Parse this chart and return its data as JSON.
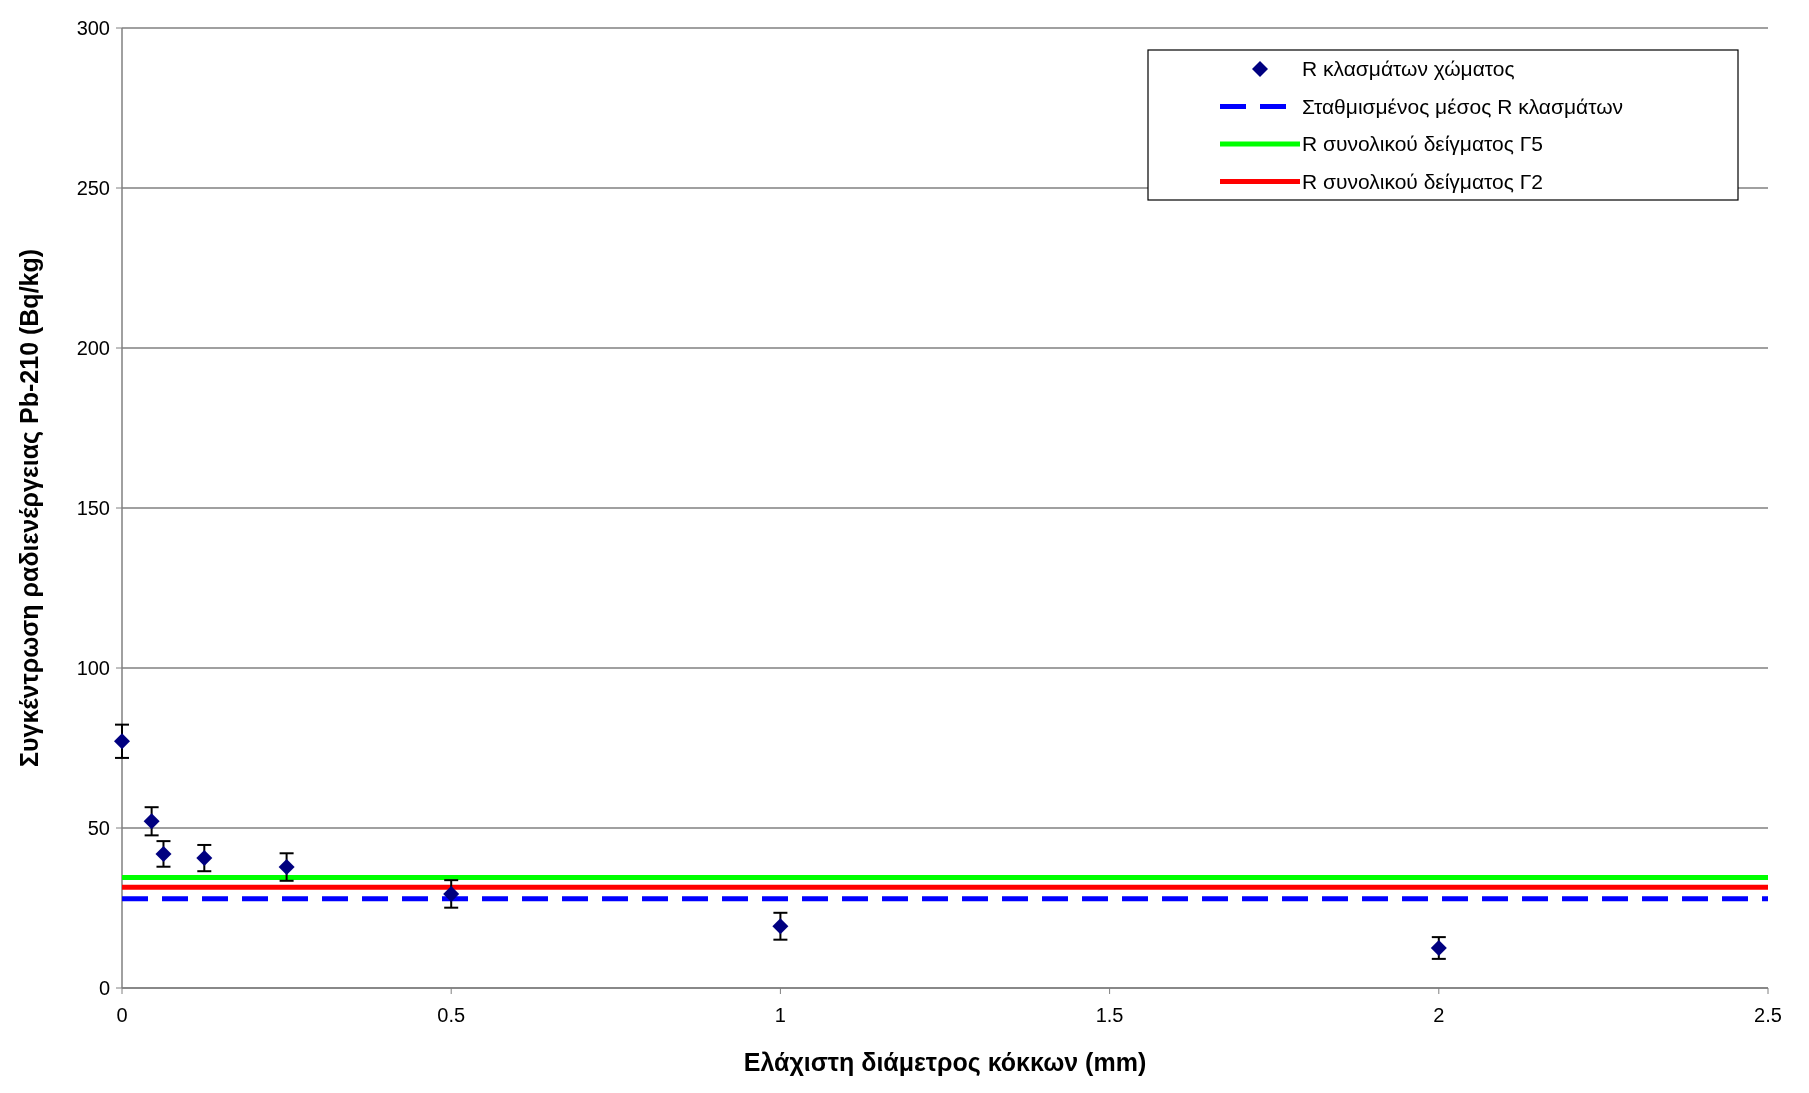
{
  "chart_data": {
    "type": "scatter",
    "xlabel": "Ελάχιστη διάμετρος κόκκων (mm)",
    "ylabel": "Συγκέντρωση ραδιενέργειας Pb-210 (Bq/kg)",
    "x": [
      0,
      0.045,
      0.063,
      0.125,
      0.25,
      0.5,
      1,
      2
    ],
    "series": [
      {
        "name": "R κλασμάτων χώματος",
        "color": "#000080",
        "values": [
          77.1,
          52.1,
          41.9,
          40.6,
          37.8,
          29.4,
          19.3,
          12.5
        ],
        "errors": [
          5.2,
          4.4,
          4,
          4.1,
          4.3,
          4.3,
          4.2,
          3.4
        ],
        "marker": "diamond"
      }
    ],
    "ref_lines": [
      {
        "axis": "y",
        "value": 27.9,
        "label": "Σταθμισμένος μέσος R κλασμάτων",
        "color": "#0000ff",
        "line_style": "dashed"
      },
      {
        "axis": "y",
        "value": 34.5,
        "label": "R συνολικού δείγματος Γ5",
        "color": "#00ff00",
        "line_style": "solid"
      },
      {
        "axis": "y",
        "value": 31.5,
        "label": "R συνολικού δείγματος Γ2",
        "color": "#ff0000",
        "line_style": "solid"
      }
    ],
    "xlim": [
      0,
      2.5
    ],
    "xticks": [
      0,
      0.5,
      1,
      1.5,
      2,
      2.5
    ],
    "ylim": [
      0,
      300
    ],
    "yticks": [
      0,
      50,
      100,
      150,
      200,
      250,
      300
    ],
    "grid": "y",
    "legend": "top right"
  }
}
